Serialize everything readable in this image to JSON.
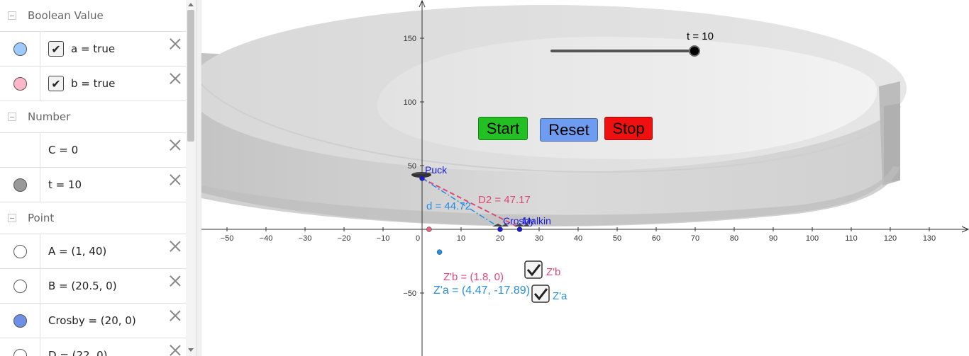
{
  "algebra": {
    "items": [
      {
        "type": "category",
        "label": "Boolean Value"
      },
      {
        "type": "object",
        "marble": "#9ecbff",
        "checkbox": true,
        "expr": "a = true"
      },
      {
        "type": "object",
        "marble": "#ffb6c8",
        "checkbox": true,
        "expr": "b = true"
      },
      {
        "type": "category",
        "label": "Number"
      },
      {
        "type": "object",
        "marble": "",
        "checkbox": false,
        "expr": "C = 0"
      },
      {
        "type": "object",
        "marble": "#999999",
        "checkbox": false,
        "expr": "t = 10"
      },
      {
        "type": "category",
        "label": "Point"
      },
      {
        "type": "object",
        "marble": "#ffffff",
        "checkbox": false,
        "expr": "A = (1, 40)"
      },
      {
        "type": "object",
        "marble": "#ffffff",
        "checkbox": false,
        "expr": "B = (20.5, 0)"
      },
      {
        "type": "object",
        "marble": "#6d8fe6",
        "checkbox": false,
        "expr": "Crosby = (20, 0)"
      },
      {
        "type": "object",
        "marble": "#ffffff",
        "checkbox": false,
        "expr": "D = (22, 0)"
      }
    ]
  },
  "graphics": {
    "slider": {
      "label": "t = 10",
      "value": 10,
      "min": 0,
      "max": 10
    },
    "buttons": {
      "start": {
        "label": "Start",
        "color": "#22c022"
      },
      "reset": {
        "label": "Reset",
        "color": "#6d9cf0"
      },
      "stop": {
        "label": "Stop",
        "color": "#f01010"
      }
    },
    "axes": {
      "x_ticks": [
        "−50",
        "−40",
        "−30",
        "−20",
        "−10",
        "0",
        "10",
        "20",
        "30",
        "40",
        "50",
        "60",
        "70",
        "80",
        "90",
        "100",
        "110",
        "120",
        "130"
      ],
      "y_ticks": [
        "150",
        "100",
        "50",
        "−50"
      ]
    },
    "points": [
      {
        "name": "Puck",
        "x": 0,
        "y": 40,
        "color": "#1a1ad0"
      },
      {
        "name": "Crosby",
        "x": 20,
        "y": 0,
        "color": "#1a1ad0"
      },
      {
        "name": "Malkin",
        "x": 25,
        "y": 0,
        "color": "#1a1ad0"
      },
      {
        "name": "",
        "x": 1.8,
        "y": 0,
        "color": "#e8607f"
      },
      {
        "name": "",
        "x": 4.47,
        "y": -17.89,
        "color": "#2a8ee0"
      }
    ],
    "labels": {
      "d2": "D2 = 47.17",
      "d": "d = 44.72",
      "zb_expr": "Z'b = (1.8, 0)",
      "za_expr": "Z'a = (4.47, -17.89)",
      "zb_check": "Z'b",
      "za_check": "Z'a"
    },
    "colors": {
      "pink": "#e04878",
      "blue": "#2a8ee0",
      "point_blue": "#1a1ad0"
    }
  }
}
